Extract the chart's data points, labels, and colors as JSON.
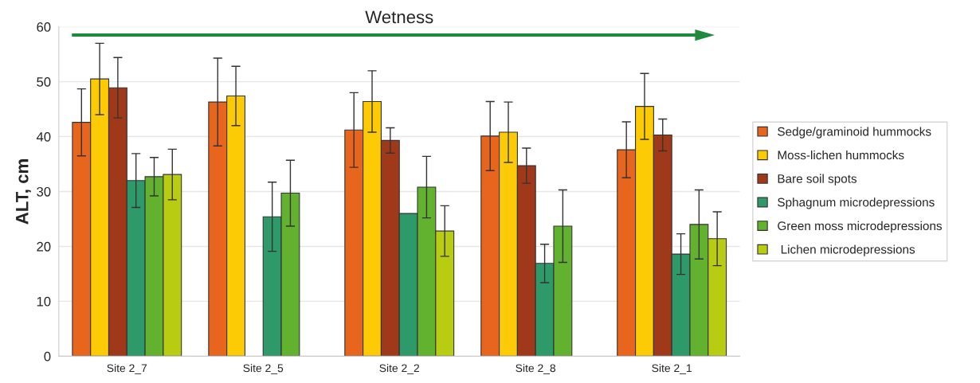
{
  "chart_data": {
    "type": "bar",
    "ylabel": "ALT, cm",
    "categories": [
      "Site 2_7",
      "Site 2_5",
      "Site 2_2",
      "Site 2_8",
      "Site 2_1"
    ],
    "series": [
      {
        "name": "Sedge/graminoid hummocks",
        "color": "#e8651e",
        "values": [
          42.6,
          46.3,
          41.2,
          40.1,
          37.6
        ],
        "errors": [
          6.1,
          8.0,
          6.8,
          6.3,
          5.1
        ]
      },
      {
        "name": "Moss-lichen hummocks",
        "color": "#fccb05",
        "values": [
          50.5,
          47.4,
          46.4,
          40.8,
          45.5
        ],
        "errors": [
          6.5,
          5.4,
          5.6,
          5.5,
          6.0
        ]
      },
      {
        "name": "Bare soil spots",
        "color": "#a0391a",
        "values": [
          48.9,
          null,
          39.3,
          34.7,
          40.3
        ],
        "errors": [
          5.5,
          null,
          2.3,
          3.2,
          2.9
        ]
      },
      {
        "name": "Sphagnum microdepressions",
        "color": "#2e9a6a",
        "values": [
          32.0,
          25.4,
          26.0,
          16.9,
          18.6
        ],
        "errors": [
          4.9,
          6.3,
          null,
          3.5,
          3.7
        ]
      },
      {
        "name": "Green moss microdepressions",
        "color": "#63b22f",
        "values": [
          32.7,
          29.7,
          30.8,
          23.7,
          24.0
        ],
        "errors": [
          3.5,
          6.0,
          5.6,
          6.6,
          6.3
        ]
      },
      {
        "name": " Lichen microdepressions",
        "color": "#b8cc12",
        "values": [
          33.1,
          null,
          22.8,
          null,
          21.4
        ],
        "errors": [
          4.6,
          null,
          4.6,
          null,
          4.9
        ]
      }
    ],
    "ylim": [
      0,
      60
    ],
    "yticks": [
      0,
      10,
      20,
      30,
      40,
      50,
      60
    ],
    "grid": "y",
    "legend": "right",
    "annotations": [
      "Wetness"
    ]
  }
}
